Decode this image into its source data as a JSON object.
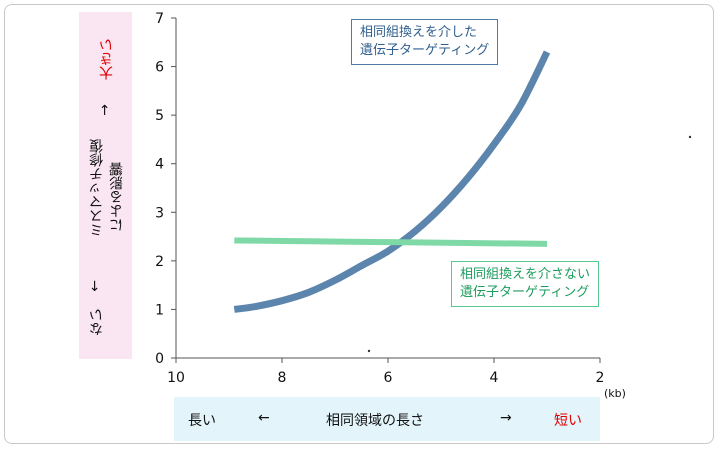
{
  "chart_data": {
    "type": "line",
    "xlim": [
      10,
      2
    ],
    "ylim": [
      0,
      7
    ],
    "x_ticks": [
      "10",
      "8",
      "6",
      "4",
      "2"
    ],
    "y_ticks": [
      "0",
      "1",
      "2",
      "3",
      "4",
      "5",
      "6",
      "7"
    ],
    "x_unit": "(kb)",
    "series": [
      {
        "name": "相同組換えを介した遺伝子ターゲティング",
        "color": "#5b85ad",
        "x": [
          8.9,
          8.5,
          8.0,
          7.5,
          7.0,
          6.5,
          6.0,
          5.5,
          5.0,
          4.5,
          4.0,
          3.5,
          3.0
        ],
        "y": [
          1.0,
          1.06,
          1.18,
          1.35,
          1.6,
          1.9,
          2.2,
          2.6,
          3.1,
          3.7,
          4.4,
          5.2,
          6.3
        ]
      },
      {
        "name": "相同組換えを介さない遺伝子ターゲティング",
        "color": "#7ed9a6",
        "x": [
          8.9,
          3.0
        ],
        "y": [
          2.42,
          2.35
        ]
      }
    ]
  },
  "y_axis_label": {
    "left": "ない",
    "arrow_left": "←",
    "center_line1": "ミスマッチ修復",
    "center_line2": "による影響",
    "arrow_right": "→",
    "right": "大きい"
  },
  "x_axis_label": {
    "left": "長い",
    "arrow_left": "←",
    "center": "相同領域の長さ",
    "arrow_right": "→",
    "right": "短い"
  },
  "annotations": {
    "with_hr_line1": "相同組換えを介した",
    "with_hr_line2": "遺伝子ターゲティング",
    "without_hr_line1": "相同組換えを介さない",
    "without_hr_line2": "遺伝子ターゲティング"
  }
}
